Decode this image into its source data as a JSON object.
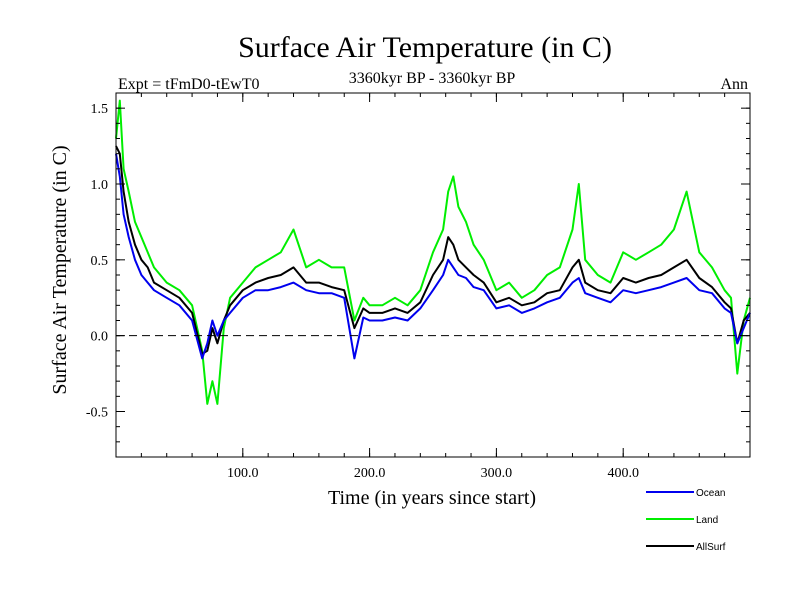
{
  "chart_data": {
    "type": "line",
    "title": "Surface Air Temperature (in C)",
    "subtitle": "3360kyr BP - 3360kyr BP",
    "left_label": "Expt = tFmD0-tEwT0",
    "right_label": "Ann",
    "xlabel": "Time (in years since start)",
    "ylabel": "Surface Air Temperature (in C)",
    "xlim": [
      0,
      500
    ],
    "ylim": [
      -0.8,
      1.6
    ],
    "xticks": [
      100,
      200,
      300,
      400
    ],
    "xtick_labels": [
      "100.0",
      "200.0",
      "300.0",
      "400.0"
    ],
    "yticks": [
      -0.5,
      0.0,
      0.5,
      1.0,
      1.5
    ],
    "ytick_labels": [
      "-0.5",
      "0.0",
      "0.5",
      "1.0",
      "1.5"
    ],
    "zero_line": 0.0,
    "grid": false,
    "legend_position": "below-right",
    "series": [
      {
        "name": "Land",
        "color": "#00ee00",
        "x": [
          0,
          3,
          6,
          10,
          15,
          20,
          25,
          30,
          40,
          50,
          60,
          68,
          72,
          76,
          80,
          85,
          90,
          100,
          110,
          120,
          130,
          140,
          150,
          160,
          170,
          180,
          188,
          195,
          200,
          210,
          220,
          230,
          240,
          250,
          258,
          262,
          266,
          270,
          276,
          282,
          290,
          300,
          310,
          320,
          330,
          340,
          350,
          360,
          365,
          370,
          380,
          390,
          400,
          410,
          420,
          430,
          440,
          450,
          460,
          470,
          480,
          485,
          490,
          495,
          500
        ],
        "values": [
          1.3,
          1.55,
          1.1,
          0.95,
          0.75,
          0.65,
          0.55,
          0.45,
          0.35,
          0.3,
          0.2,
          -0.1,
          -0.45,
          -0.3,
          -0.45,
          0.05,
          0.25,
          0.35,
          0.45,
          0.5,
          0.55,
          0.7,
          0.45,
          0.5,
          0.45,
          0.45,
          0.1,
          0.25,
          0.2,
          0.2,
          0.25,
          0.2,
          0.3,
          0.55,
          0.7,
          0.95,
          1.05,
          0.85,
          0.75,
          0.6,
          0.5,
          0.3,
          0.35,
          0.25,
          0.3,
          0.4,
          0.45,
          0.7,
          1.0,
          0.5,
          0.4,
          0.35,
          0.55,
          0.5,
          0.55,
          0.6,
          0.7,
          0.95,
          0.55,
          0.45,
          0.3,
          0.25,
          -0.25,
          0.1,
          0.25
        ]
      },
      {
        "name": "AllSurf",
        "color": "#000000",
        "x": [
          0,
          3,
          6,
          10,
          15,
          20,
          25,
          30,
          40,
          50,
          60,
          68,
          72,
          76,
          80,
          85,
          90,
          100,
          110,
          120,
          130,
          140,
          150,
          160,
          170,
          180,
          188,
          195,
          200,
          210,
          220,
          230,
          240,
          250,
          258,
          262,
          266,
          270,
          276,
          282,
          290,
          300,
          310,
          320,
          330,
          340,
          350,
          360,
          365,
          370,
          380,
          390,
          400,
          410,
          420,
          430,
          440,
          450,
          460,
          470,
          480,
          485,
          490,
          495,
          500
        ],
        "values": [
          1.25,
          1.2,
          0.95,
          0.75,
          0.6,
          0.5,
          0.45,
          0.35,
          0.3,
          0.25,
          0.15,
          -0.12,
          -0.1,
          0.05,
          -0.05,
          0.1,
          0.2,
          0.3,
          0.35,
          0.38,
          0.4,
          0.45,
          0.35,
          0.35,
          0.32,
          0.3,
          0.05,
          0.18,
          0.15,
          0.15,
          0.18,
          0.15,
          0.22,
          0.4,
          0.5,
          0.65,
          0.6,
          0.5,
          0.45,
          0.4,
          0.35,
          0.22,
          0.25,
          0.2,
          0.22,
          0.28,
          0.3,
          0.45,
          0.5,
          0.35,
          0.3,
          0.28,
          0.38,
          0.35,
          0.38,
          0.4,
          0.45,
          0.5,
          0.38,
          0.32,
          0.22,
          0.18,
          -0.05,
          0.1,
          0.15
        ]
      },
      {
        "name": "Ocean",
        "color": "#0000ee",
        "x": [
          0,
          3,
          6,
          10,
          15,
          20,
          25,
          30,
          40,
          50,
          60,
          68,
          72,
          76,
          80,
          85,
          90,
          100,
          110,
          120,
          130,
          140,
          150,
          160,
          170,
          180,
          188,
          195,
          200,
          210,
          220,
          230,
          240,
          250,
          258,
          262,
          266,
          270,
          276,
          282,
          290,
          300,
          310,
          320,
          330,
          340,
          350,
          360,
          365,
          370,
          380,
          390,
          400,
          410,
          420,
          430,
          440,
          450,
          460,
          470,
          480,
          485,
          490,
          495,
          500
        ],
        "values": [
          1.2,
          1.05,
          0.8,
          0.65,
          0.5,
          0.4,
          0.35,
          0.3,
          0.25,
          0.2,
          0.1,
          -0.15,
          -0.05,
          0.1,
          0.0,
          0.1,
          0.15,
          0.25,
          0.3,
          0.3,
          0.32,
          0.35,
          0.3,
          0.28,
          0.28,
          0.25,
          -0.15,
          0.12,
          0.1,
          0.1,
          0.12,
          0.1,
          0.18,
          0.3,
          0.4,
          0.5,
          0.45,
          0.4,
          0.38,
          0.32,
          0.3,
          0.18,
          0.2,
          0.15,
          0.18,
          0.22,
          0.25,
          0.35,
          0.38,
          0.28,
          0.25,
          0.22,
          0.3,
          0.28,
          0.3,
          0.32,
          0.35,
          0.38,
          0.3,
          0.28,
          0.18,
          0.15,
          -0.05,
          0.05,
          0.15
        ]
      }
    ]
  }
}
